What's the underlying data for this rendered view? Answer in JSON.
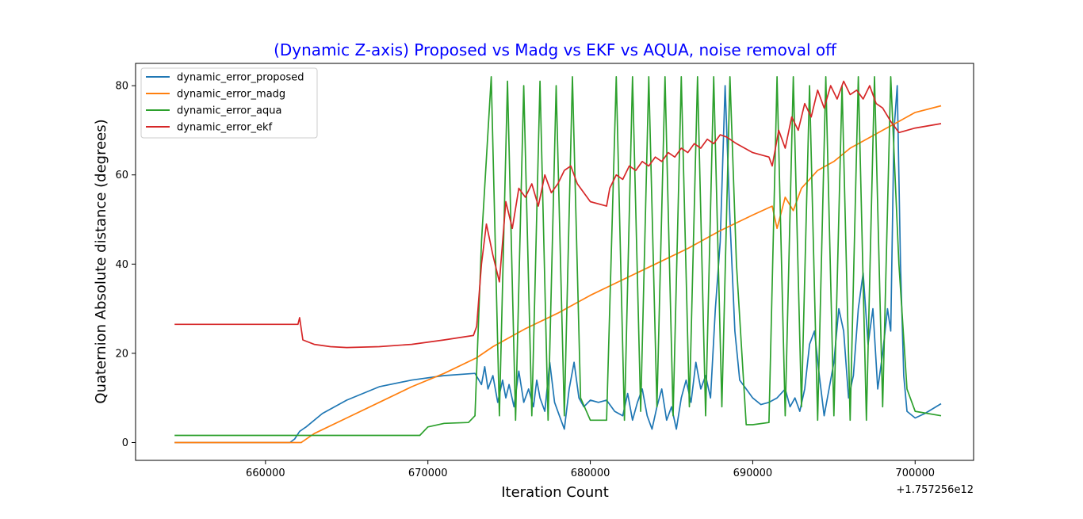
{
  "chart_data": {
    "type": "line",
    "title": "(Dynamic Z-axis) Proposed vs Madg vs EKF vs AQUA, noise removal off",
    "title_color": "#0000ff",
    "xlabel": "Iteration Count",
    "ylabel": "Quaternion Absolute distance (degrees)",
    "x_offset_label": "+1.757256e12",
    "xlim": [
      652000,
      703600
    ],
    "ylim": [
      -4,
      85
    ],
    "x_ticks": [
      660000,
      670000,
      680000,
      690000,
      700000
    ],
    "x_tick_labels": [
      "660000",
      "670000",
      "680000",
      "690000",
      "700000"
    ],
    "y_ticks": [
      0,
      20,
      40,
      60,
      80
    ],
    "y_tick_labels": [
      "0",
      "20",
      "40",
      "60",
      "80"
    ],
    "grid": false,
    "legend_position": "top-left",
    "series": [
      {
        "name": "dynamic_error_proposed",
        "color": "#1f77b4",
        "x": [
          654400,
          660000,
          661500,
          661800,
          662100,
          662500,
          663500,
          665000,
          667000,
          669000,
          671000,
          672900,
          673300,
          673500,
          673700,
          674000,
          674300,
          674600,
          674800,
          675000,
          675300,
          675600,
          675900,
          676200,
          676500,
          676700,
          676900,
          677200,
          677500,
          677800,
          678100,
          678400,
          678700,
          679000,
          679300,
          679600,
          680000,
          680500,
          681000,
          681500,
          682000,
          682300,
          682600,
          682900,
          683200,
          683500,
          683800,
          684100,
          684400,
          684700,
          685000,
          685300,
          685600,
          685900,
          686200,
          686500,
          686800,
          687100,
          687400,
          687700,
          688000,
          688300,
          688600,
          688900,
          689200,
          689600,
          690000,
          690500,
          691000,
          691500,
          692000,
          692300,
          692600,
          692900,
          693200,
          693500,
          693800,
          694100,
          694400,
          694700,
          695000,
          695300,
          695600,
          695900,
          696200,
          696500,
          696800,
          697100,
          697400,
          697700,
          698000,
          698300,
          698500,
          698700,
          698900,
          699100,
          699300,
          699500,
          700000,
          700600,
          701600
        ],
        "y": [
          0,
          0,
          0,
          0.8,
          2.5,
          3.5,
          6.5,
          9.5,
          12.5,
          14,
          15,
          15.5,
          13,
          17,
          12,
          15,
          9,
          14,
          10,
          13,
          8,
          16,
          9,
          12,
          8,
          14,
          10,
          7,
          18,
          9,
          6,
          3,
          12,
          18,
          10,
          8,
          9.5,
          9,
          9.5,
          7,
          6,
          11,
          5,
          9,
          12,
          6,
          3,
          8,
          12,
          5,
          8,
          3,
          10,
          14,
          9,
          18,
          12,
          15,
          10,
          30,
          45,
          80,
          50,
          25,
          14,
          12,
          10,
          8.5,
          9,
          10,
          12,
          8,
          10,
          7,
          12,
          22,
          25,
          15,
          6,
          12,
          18,
          30,
          25,
          10,
          15,
          30,
          38,
          22,
          30,
          12,
          20,
          30,
          25,
          70,
          80,
          40,
          15,
          7,
          5.5,
          6.5,
          8.7
        ]
      },
      {
        "name": "dynamic_error_madg",
        "color": "#ff7f0e",
        "x": [
          654400,
          662200,
          663000,
          665000,
          667000,
          669000,
          671000,
          673000,
          674000,
          676000,
          678000,
          680000,
          682000,
          684000,
          686000,
          688000,
          690000,
          691200,
          691500,
          692000,
          692500,
          693000,
          694000,
          695000,
          696000,
          697000,
          698000,
          699000,
          700000,
          701600
        ],
        "y": [
          0,
          0,
          2,
          5.5,
          9,
          12.5,
          15.5,
          19,
          21.5,
          25.5,
          29,
          33,
          36.5,
          40,
          43.5,
          47.5,
          51,
          53,
          48,
          55,
          52,
          57,
          61,
          63,
          66,
          68,
          70,
          72,
          74,
          75.5
        ]
      },
      {
        "name": "dynamic_error_aqua",
        "color": "#2ca02c",
        "x": [
          654400,
          669500,
          670000,
          671000,
          672500,
          672900,
          673300,
          673900,
          674400,
          674900,
          675400,
          675900,
          676400,
          676900,
          677400,
          677900,
          678400,
          678900,
          679400,
          680000,
          681000,
          681600,
          682100,
          682600,
          683100,
          683600,
          684100,
          684600,
          685100,
          685600,
          686100,
          686600,
          687100,
          687600,
          688100,
          688600,
          689000,
          689600,
          690000,
          691000,
          691500,
          692000,
          692500,
          693000,
          693500,
          694000,
          694500,
          695000,
          695500,
          696000,
          696500,
          697000,
          697500,
          698000,
          698500,
          699000,
          699500,
          700000,
          701600
        ],
        "y": [
          1.6,
          1.6,
          3.5,
          4.3,
          4.5,
          6,
          45,
          82,
          6,
          81,
          5,
          80,
          6,
          81,
          5,
          80,
          6,
          82,
          10,
          5,
          5,
          82,
          5,
          82,
          7,
          82,
          8,
          82,
          6,
          82,
          8,
          82,
          6,
          82,
          8,
          82,
          40,
          4,
          4,
          4.5,
          82,
          6,
          82,
          8,
          80,
          5,
          82,
          6,
          80,
          5,
          82,
          5,
          82,
          8,
          82,
          40,
          12,
          7,
          6
        ]
      },
      {
        "name": "dynamic_error_ekf",
        "color": "#d62728",
        "x": [
          654400,
          662000,
          662100,
          662300,
          663000,
          664000,
          665000,
          667000,
          669000,
          671000,
          672800,
          673000,
          673300,
          673600,
          674000,
          674400,
          674800,
          675200,
          675600,
          676000,
          676400,
          676800,
          677200,
          677600,
          678000,
          678400,
          678800,
          679200,
          680000,
          681000,
          681200,
          681600,
          682000,
          682400,
          682800,
          683200,
          683600,
          684000,
          684400,
          684800,
          685200,
          685600,
          686000,
          686400,
          686800,
          687200,
          687600,
          688000,
          688400,
          689000,
          690000,
          691000,
          691200,
          691600,
          692000,
          692400,
          692800,
          693200,
          693600,
          694000,
          694400,
          694800,
          695200,
          695600,
          696000,
          696400,
          696800,
          697200,
          697600,
          698000,
          698500,
          699000,
          700000,
          701600
        ],
        "y": [
          26.5,
          26.5,
          28,
          23,
          22,
          21.5,
          21.3,
          21.5,
          22,
          23,
          24,
          26,
          40,
          49,
          42,
          36,
          54,
          48,
          57,
          55,
          58,
          53,
          60,
          56,
          58,
          61,
          62,
          58,
          54,
          53,
          57,
          60,
          59,
          62,
          61,
          63,
          62,
          64,
          63,
          65,
          64,
          66,
          65,
          67,
          66,
          68,
          67,
          69,
          68.5,
          67,
          65,
          64,
          62,
          70,
          66,
          73,
          70,
          76,
          73,
          79,
          75,
          80,
          77,
          81,
          78,
          79,
          77,
          80,
          76,
          75,
          72,
          69.5,
          70.5,
          71.5
        ]
      }
    ]
  }
}
